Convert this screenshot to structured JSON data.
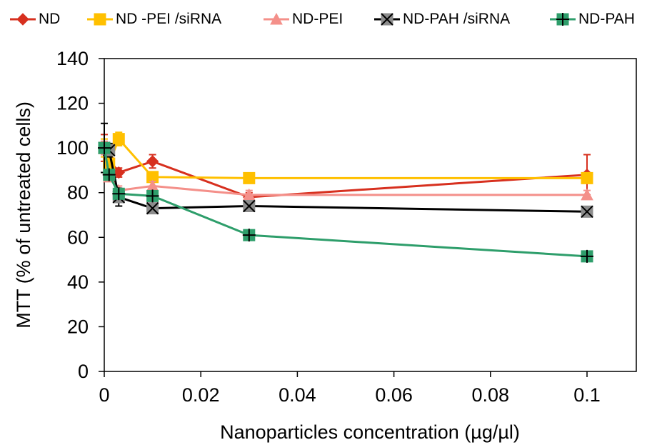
{
  "chart_data": {
    "type": "line",
    "title": "",
    "xlabel": "Nanoparticles concentration (µg/µl)",
    "ylabel": "MTT (% of untreated cells)",
    "xlim": [
      0,
      0.11
    ],
    "ylim": [
      0,
      140
    ],
    "xticks": [
      0,
      0.02,
      0.04,
      0.06,
      0.08,
      0.1
    ],
    "xtick_labels": [
      "0",
      "0.02",
      "0.04",
      "0.06",
      "0.08",
      "0.1"
    ],
    "yticks": [
      0,
      20,
      40,
      60,
      80,
      100,
      120,
      140
    ],
    "ytick_labels": [
      "0",
      "20",
      "40",
      "60",
      "80",
      "100",
      "120",
      "140"
    ],
    "grid": false,
    "legend_position": "top",
    "series": [
      {
        "name": "ND",
        "color": "#d7301f",
        "marker": "diamond",
        "x": [
          0,
          0.001,
          0.003,
          0.01,
          0.03,
          0.1
        ],
        "y": [
          100,
          95,
          89,
          94,
          78,
          88
        ],
        "err": [
          6,
          5,
          2,
          3,
          2,
          9
        ]
      },
      {
        "name": "ND -PEI /siRNA",
        "color": "#ffc000",
        "marker": "square",
        "x": [
          0,
          0.001,
          0.003,
          0.01,
          0.03,
          0.1
        ],
        "y": [
          100,
          93,
          104,
          87,
          86.5,
          86.5
        ],
        "err": [
          4,
          3,
          3,
          2,
          1,
          1
        ]
      },
      {
        "name": "ND-PEI",
        "color": "#f4908a",
        "marker": "triangle",
        "x": [
          0,
          0.001,
          0.003,
          0.01,
          0.03,
          0.1
        ],
        "y": [
          100,
          87,
          81,
          83,
          79,
          79
        ],
        "err": [
          3,
          2,
          2,
          2,
          2,
          2
        ]
      },
      {
        "name": "ND-PAH /siRNA",
        "color": "#000000",
        "marker": "x-square",
        "x": [
          0,
          0.001,
          0.003,
          0.01,
          0.03,
          0.1
        ],
        "y": [
          100,
          99,
          78,
          73,
          74,
          71.5
        ],
        "err": [
          11,
          3,
          4,
          2,
          2,
          1
        ]
      },
      {
        "name": "ND-PAH",
        "color": "#2e9e6b",
        "marker": "plus-square",
        "x": [
          0,
          0.001,
          0.003,
          0.01,
          0.03,
          0.1
        ],
        "y": [
          100,
          88,
          79.5,
          78.5,
          61,
          51.5
        ],
        "err": [
          2,
          2,
          2,
          2,
          1,
          1
        ]
      }
    ]
  }
}
